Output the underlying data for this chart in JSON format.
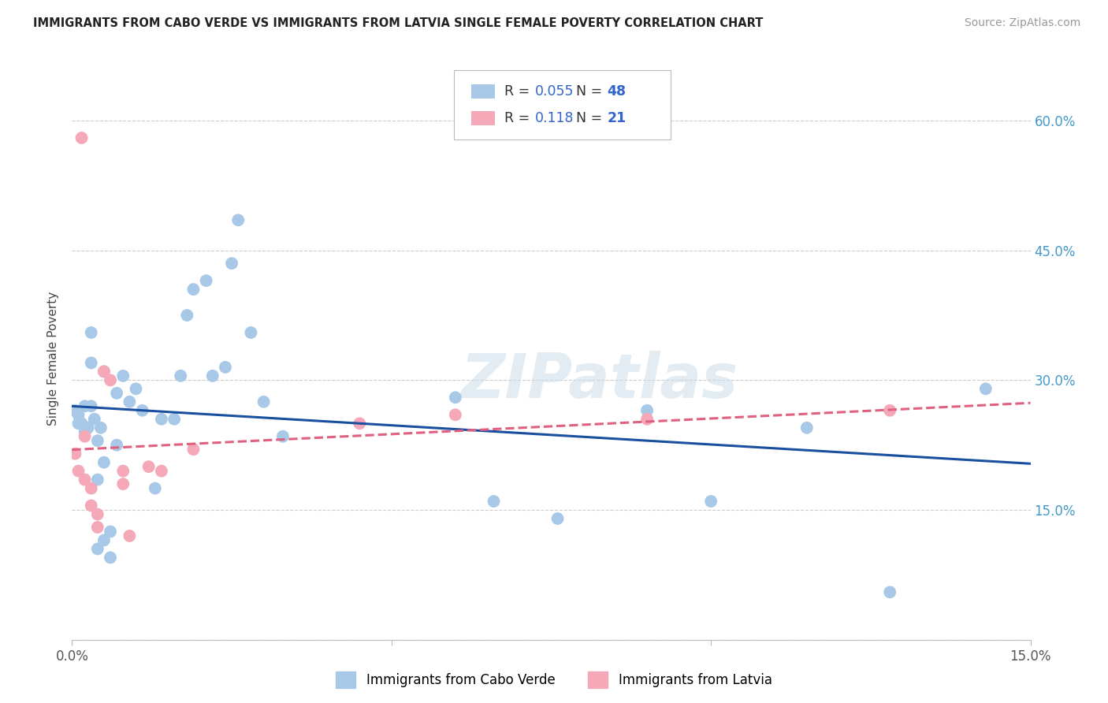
{
  "title": "IMMIGRANTS FROM CABO VERDE VS IMMIGRANTS FROM LATVIA SINGLE FEMALE POVERTY CORRELATION CHART",
  "source": "Source: ZipAtlas.com",
  "ylabel": "Single Female Poverty",
  "xlim": [
    0.0,
    0.15
  ],
  "ylim": [
    0.0,
    0.65
  ],
  "cabo_verde_color": "#a8c8e8",
  "latvia_color": "#f4a8b8",
  "cabo_verde_line_color": "#1a4fa0",
  "latvia_line_color": "#e06080",
  "cabo_verde_R": 0.055,
  "cabo_verde_N": 48,
  "latvia_R": 0.118,
  "latvia_N": 21,
  "background_color": "#ffffff",
  "grid_color": "#cccccc",
  "watermark": "ZIPatlas",
  "legend_R_N_color": "#3366cc",
  "right_yaxis_color": "#4499cc",
  "cabo_verde_x": [
    0.0005,
    0.001,
    0.001,
    0.0015,
    0.002,
    0.002,
    0.0025,
    0.003,
    0.003,
    0.003,
    0.0035,
    0.004,
    0.004,
    0.004,
    0.0045,
    0.005,
    0.005,
    0.005,
    0.006,
    0.006,
    0.007,
    0.007,
    0.008,
    0.009,
    0.01,
    0.011,
    0.013,
    0.014,
    0.016,
    0.017,
    0.018,
    0.019,
    0.021,
    0.022,
    0.024,
    0.025,
    0.026,
    0.028,
    0.03,
    0.033,
    0.06,
    0.066,
    0.076,
    0.09,
    0.1,
    0.115,
    0.128,
    0.143
  ],
  "cabo_verde_y": [
    0.265,
    0.26,
    0.25,
    0.25,
    0.27,
    0.24,
    0.245,
    0.355,
    0.32,
    0.27,
    0.255,
    0.23,
    0.185,
    0.105,
    0.245,
    0.31,
    0.205,
    0.115,
    0.125,
    0.095,
    0.285,
    0.225,
    0.305,
    0.275,
    0.29,
    0.265,
    0.175,
    0.255,
    0.255,
    0.305,
    0.375,
    0.405,
    0.415,
    0.305,
    0.315,
    0.435,
    0.485,
    0.355,
    0.275,
    0.235,
    0.28,
    0.16,
    0.14,
    0.265,
    0.16,
    0.245,
    0.055,
    0.29
  ],
  "latvia_x": [
    0.0005,
    0.001,
    0.0015,
    0.002,
    0.002,
    0.003,
    0.003,
    0.004,
    0.004,
    0.005,
    0.006,
    0.008,
    0.009,
    0.012,
    0.014,
    0.019,
    0.008,
    0.045,
    0.06,
    0.09,
    0.128
  ],
  "latvia_y": [
    0.215,
    0.195,
    0.58,
    0.235,
    0.185,
    0.175,
    0.155,
    0.145,
    0.13,
    0.31,
    0.3,
    0.18,
    0.12,
    0.2,
    0.195,
    0.22,
    0.195,
    0.25,
    0.26,
    0.255,
    0.265
  ]
}
